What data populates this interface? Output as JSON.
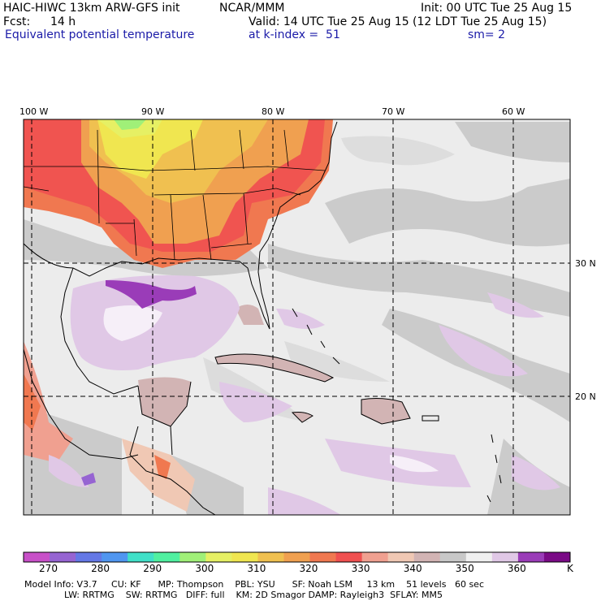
{
  "header": {
    "model_title": "HAIC-HIWC 13km ARW-GFS init",
    "org": "NCAR/MMM",
    "init": "Init: 00 UTC Tue 25 Aug 15",
    "fcst_label": "Fcst:",
    "fcst_value": "14 h",
    "valid": "Valid: 14 UTC Tue 25 Aug 15 (12 LDT Tue 25 Aug 15)",
    "field": "Equivalent potential temperature",
    "level": "at k-index =  51",
    "smooth": "sm= 2"
  },
  "map": {
    "lon_labels": [
      "100 W",
      "90 W",
      "80 W",
      "70 W",
      "60 W"
    ],
    "lat_labels": [
      "30 N",
      "20 N"
    ],
    "colors": {
      "warm_core": "#f0f000",
      "hot": "#f05050",
      "purple_band": "#9a3cb8",
      "land": "#d2b4b4",
      "sea_gray": "#c8c8c8"
    }
  },
  "colorbar": {
    "colors": [
      "#c850c8",
      "#9664d2",
      "#6478e6",
      "#5096f0",
      "#40e0c8",
      "#50f0a0",
      "#a0f078",
      "#e6f064",
      "#f0e650",
      "#f0c050",
      "#f0a050",
      "#f07850",
      "#f05050",
      "#f0a090",
      "#f0c8b4",
      "#d2b4b4",
      "#c8c8c8",
      "#f0f0f0",
      "#e0c8e6",
      "#9a3cb8",
      "#7a0a86"
    ],
    "labels": [
      "270",
      "280",
      "290",
      "300",
      "310",
      "320",
      "330",
      "340",
      "350",
      "360"
    ],
    "units": "K"
  },
  "model_info": {
    "line1": "Model Info: V3.7     CU: KF      MP: Thompson    PBL: YSU      SF: Noah LSM     13 km    51 levels   60 sec",
    "line2": "              LW: RRTMG    SW: RRTMG   DIFF: full    KM: 2D Smagor DAMP: Rayleigh3  SFLAY: MM5"
  }
}
